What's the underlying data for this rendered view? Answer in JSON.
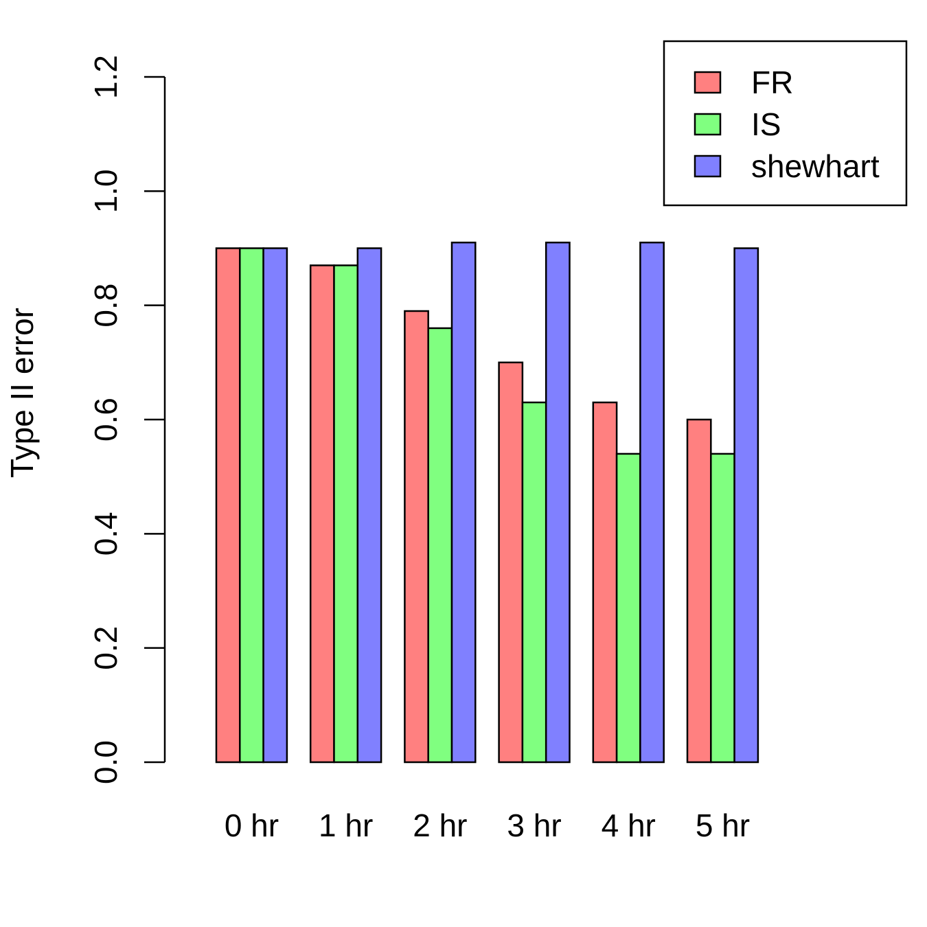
{
  "chart_data": {
    "type": "bar",
    "title": "",
    "xlabel": "",
    "ylabel": "Type II error",
    "ylim": [
      0,
      1.2
    ],
    "yticks": [
      "0.0",
      "0.2",
      "0.4",
      "0.6",
      "0.8",
      "1.0",
      "1.2"
    ],
    "categories": [
      "0 hr",
      "1 hr",
      "2 hr",
      "3 hr",
      "4 hr",
      "5 hr"
    ],
    "series": [
      {
        "name": "FR",
        "color": "#ff8080",
        "values": [
          0.9,
          0.87,
          0.79,
          0.7,
          0.63,
          0.6
        ]
      },
      {
        "name": "IS",
        "color": "#80ff80",
        "values": [
          0.9,
          0.87,
          0.76,
          0.63,
          0.54,
          0.54
        ]
      },
      {
        "name": "shewhart",
        "color": "#8080ff",
        "values": [
          0.9,
          0.9,
          0.91,
          0.91,
          0.91,
          0.9
        ]
      }
    ],
    "grid": false,
    "legend": {
      "position": "top-right"
    }
  }
}
